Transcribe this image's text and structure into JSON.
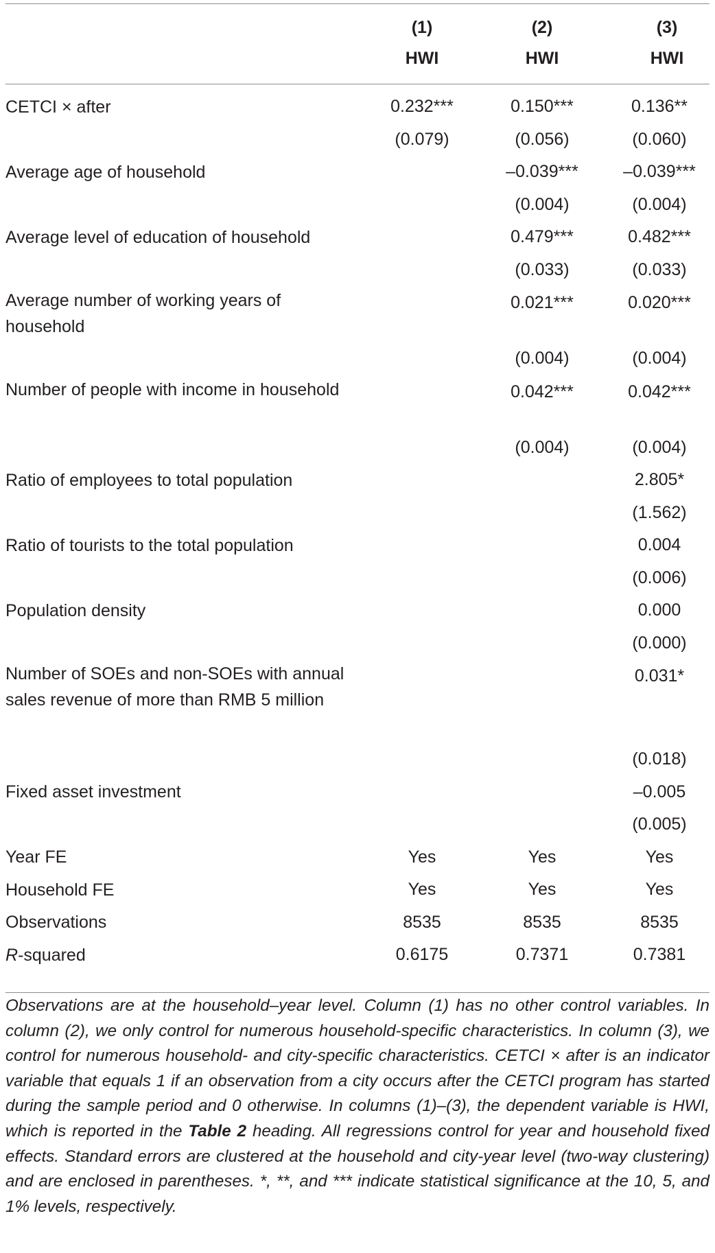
{
  "header": {
    "columns": [
      {
        "num": "(1)",
        "dep": "HWI"
      },
      {
        "num": "(2)",
        "dep": "HWI"
      },
      {
        "num": "(3)",
        "dep": "HWI"
      }
    ]
  },
  "rows": [
    {
      "label": "CETCI × after",
      "c1": "0.232***",
      "c2": "0.150***",
      "c3": "0.136**"
    },
    {
      "label": "",
      "c1": "(0.079)",
      "c2": "(0.056)",
      "c3": "(0.060)"
    },
    {
      "label": "Average age of household",
      "c1": "",
      "c2": "–0.039***",
      "c3": "–0.039***"
    },
    {
      "label": "",
      "c1": "",
      "c2": "(0.004)",
      "c3": "(0.004)"
    },
    {
      "label": "Average level of education of household",
      "c1": "",
      "c2": "0.479***",
      "c3": "0.482***"
    },
    {
      "label": "",
      "c1": "",
      "c2": "(0.033)",
      "c3": "(0.033)"
    },
    {
      "label": "Average number of working years of household",
      "c1": "",
      "c2": "0.021***",
      "c3": "0.020***"
    },
    {
      "label": "",
      "c1": "",
      "c2": "(0.004)",
      "c3": "(0.004)"
    },
    {
      "label": "Number of people with income in household",
      "c1": "",
      "c2": "0.042***",
      "c3": "0.042***"
    },
    {
      "label": "",
      "c1": "",
      "c2": "(0.004)",
      "c3": "(0.004)"
    },
    {
      "label": "Ratio of employees to total population",
      "c1": "",
      "c2": "",
      "c3": "2.805*"
    },
    {
      "label": "",
      "c1": "",
      "c2": "",
      "c3": "(1.562)"
    },
    {
      "label": "Ratio of tourists to the total population",
      "c1": "",
      "c2": "",
      "c3": "0.004"
    },
    {
      "label": "",
      "c1": "",
      "c2": "",
      "c3": "(0.006)"
    },
    {
      "label": "Population density",
      "c1": "",
      "c2": "",
      "c3": "0.000"
    },
    {
      "label": "",
      "c1": "",
      "c2": "",
      "c3": "(0.000)"
    },
    {
      "label": "Number of SOEs and non-SOEs with annual sales revenue of more than RMB 5 million",
      "c1": "",
      "c2": "",
      "c3": "0.031*"
    },
    {
      "label": "",
      "c1": "",
      "c2": "",
      "c3": "(0.018)"
    },
    {
      "label": "Fixed asset investment",
      "c1": "",
      "c2": "",
      "c3": "–0.005"
    },
    {
      "label": "",
      "c1": "",
      "c2": "",
      "c3": "(0.005)"
    },
    {
      "label": "Year FE",
      "c1": "Yes",
      "c2": "Yes",
      "c3": "Yes"
    },
    {
      "label": "Household FE",
      "c1": "Yes",
      "c2": "Yes",
      "c3": "Yes"
    },
    {
      "label": "Observations",
      "c1": "8535",
      "c2": "8535",
      "c3": "8535"
    },
    {
      "label": "-squared",
      "label_italic_prefix": "R",
      "c1": "0.6175",
      "c2": "0.7371",
      "c3": "0.7381"
    }
  ],
  "note": {
    "before": "Observations are at the household–year level. Column (1) has no other control variables. In column (2), we only control for numerous household-specific characteristics. In column (3), we control for numerous household- and city-specific characteristics. CETCI × after is an indicator variable that equals 1 if an observation from a city occurs after the CETCI program has started during the sample period and 0 otherwise. In columns (1)–(3), the dependent variable is HWI, which is reported in the ",
    "ref": "Table 2",
    "after": " heading. All regressions control for year and household fixed effects. Standard errors are clustered at the household and city-year level (two-way clustering) and are enclosed in parentheses. *, **, and *** indicate statistical significance at the 10, 5, and 1% levels, respectively."
  }
}
